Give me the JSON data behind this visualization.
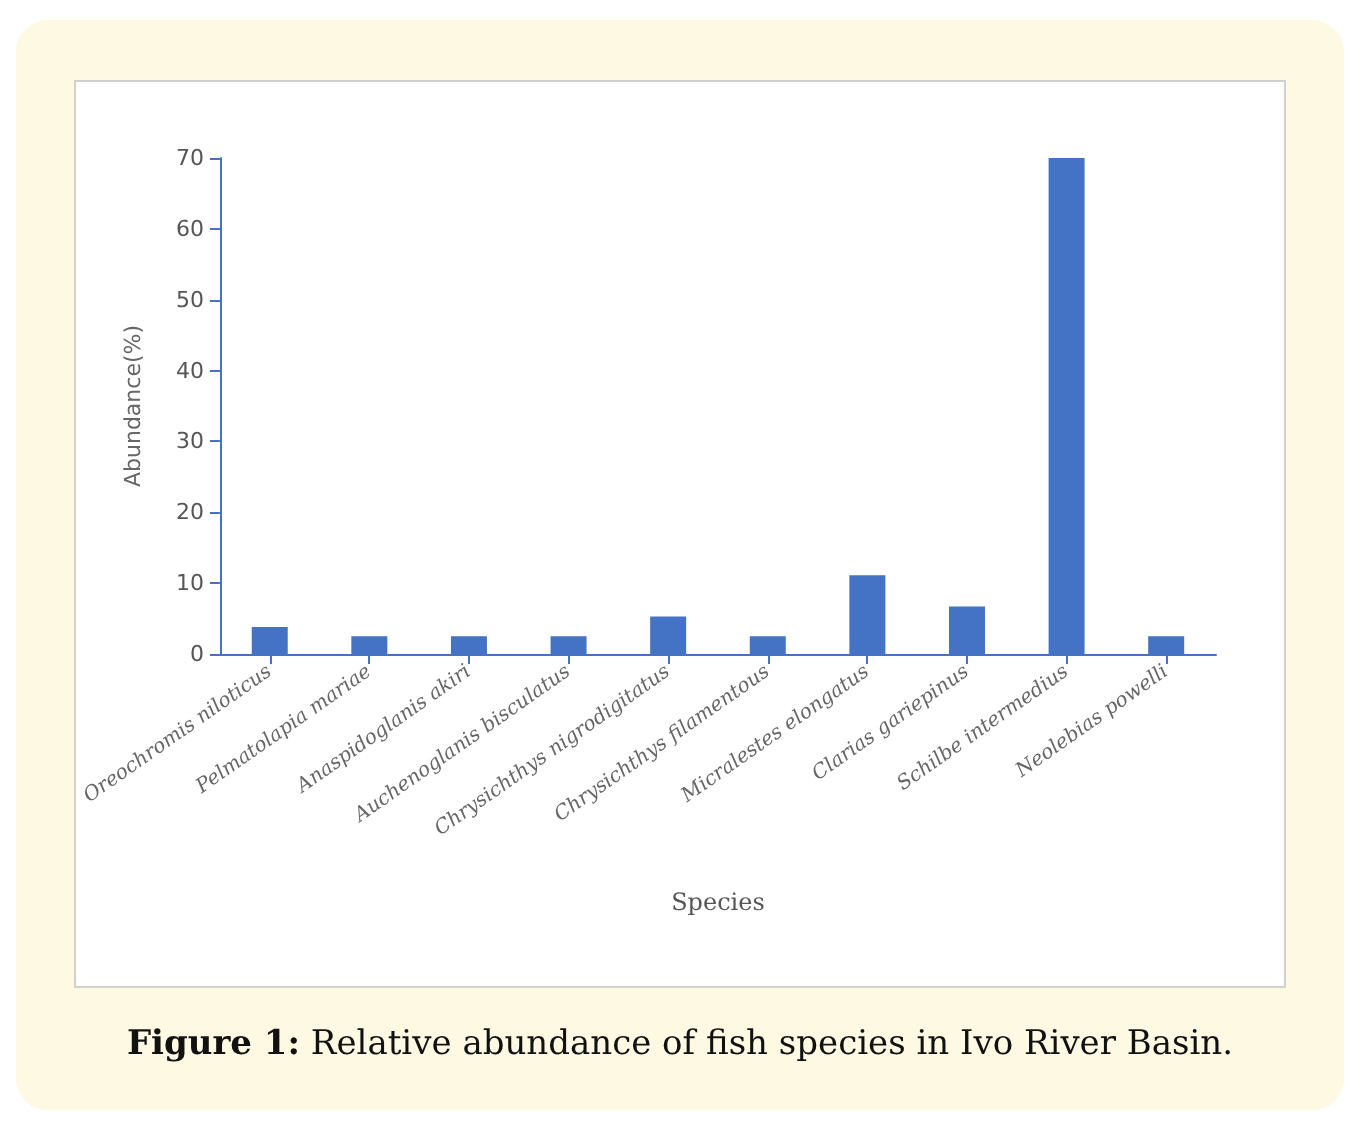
{
  "chart_data": {
    "type": "bar",
    "title": "Figure 1: Relative abundance of fish species in Ivo River Basin.",
    "xlabel": "Species",
    "ylabel": "Abundance(%)",
    "categories": [
      "Oreochromis niloticus",
      "Pelmatolapia mariae",
      "Anaspidoglanis akiri",
      "Auchenoglanis bisculatus",
      "Chrysichthys nigrodigitatus",
      "Chrysichthys filamentous",
      "Micralestes elongatus",
      "Clarias gariepinus",
      "Schilbe intermedius",
      "Neolebias powelli"
    ],
    "values": [
      3.8,
      2.5,
      2.5,
      2.5,
      5.3,
      2.5,
      11.1,
      6.7,
      70,
      2.5
    ],
    "color": "#4472c4",
    "ylim": [
      0,
      70
    ],
    "yticks": [
      0,
      10,
      20,
      30,
      40,
      50,
      60,
      70
    ],
    "grid": false
  }
}
